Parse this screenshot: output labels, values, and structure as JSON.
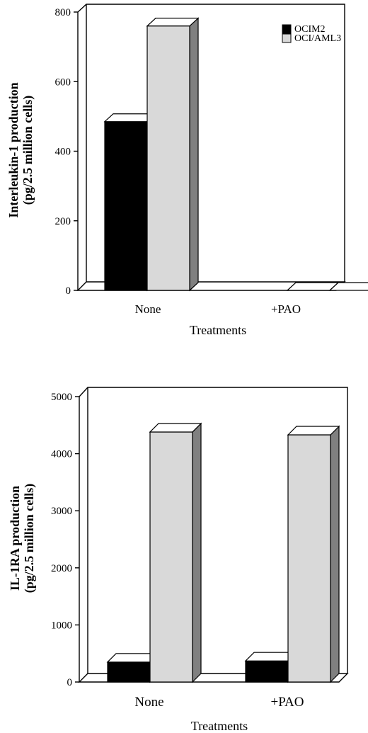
{
  "chart_data": [
    {
      "type": "bar",
      "categories": [
        "None",
        "+PAO"
      ],
      "series": [
        {
          "name": "OCIM2",
          "values": [
            485,
            0
          ],
          "color": "#000000"
        },
        {
          "name": "OCI/AML3",
          "values": [
            760,
            0
          ],
          "color": "#d9d9d9"
        }
      ],
      "ylabel": "Interleukin-1 production (pg/2.5 million cells)",
      "ylabel_lines": [
        "Interleukin-1 production",
        "(pg/2.5 million cells)"
      ],
      "xlabel": "Treatments",
      "ylim": [
        0,
        800
      ],
      "yticks": [
        0,
        200,
        400,
        600,
        800
      ],
      "legend": "top-right",
      "style": "3d"
    },
    {
      "type": "bar",
      "categories": [
        "None",
        "+PAO"
      ],
      "series": [
        {
          "name": "OCIM2",
          "values": [
            350,
            370
          ],
          "color": "#000000"
        },
        {
          "name": "OCI/AML3",
          "values": [
            4380,
            4330
          ],
          "color": "#d9d9d9"
        }
      ],
      "ylabel": "IL-1RA production (pg/2.5 million cells)",
      "ylabel_lines": [
        "IL-1RA production",
        "(pg/2.5 million cells)"
      ],
      "xlabel": "Treatments",
      "ylim": [
        0,
        5000
      ],
      "yticks": [
        0,
        1000,
        2000,
        3000,
        4000,
        5000
      ],
      "legend": "none",
      "style": "3d"
    }
  ]
}
